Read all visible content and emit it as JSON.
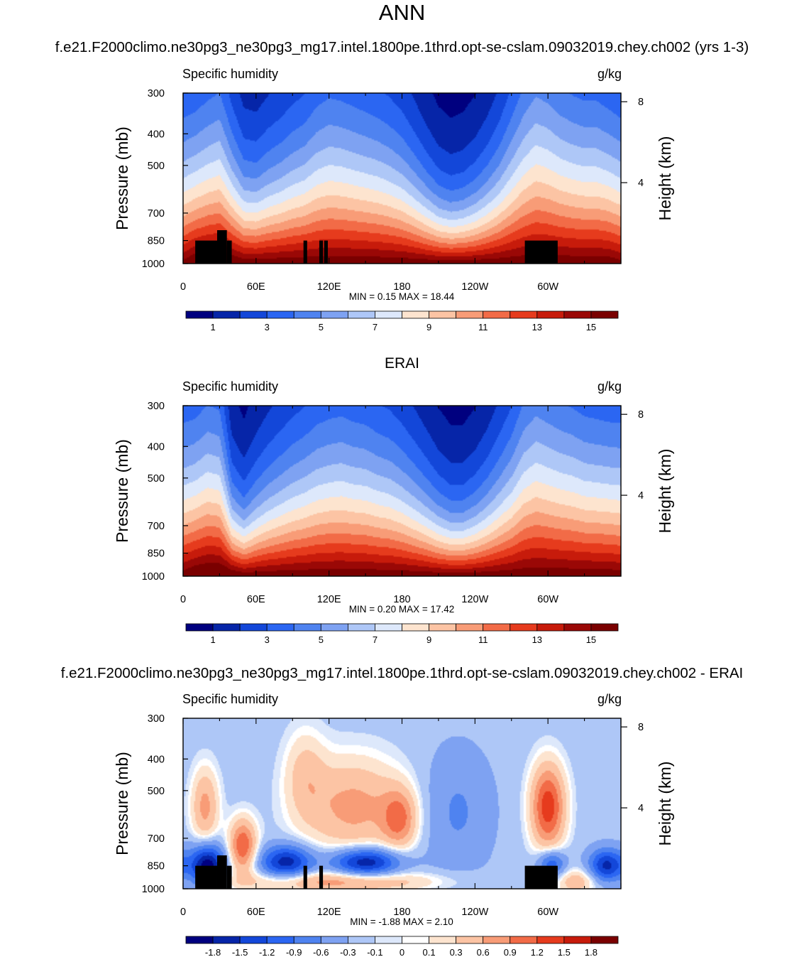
{
  "figure": {
    "title": "ANN",
    "case_title": "f.e21.F2000climo.ne30pg3_ne30pg3_mg17.intel.1800pe.1thrd.opt-se-cslam.09032019.chey.ch002 (yrs 1-3)",
    "ref_title": "ERAI",
    "diff_title": "f.e21.F2000climo.ne30pg3_ne30pg3_mg17.intel.1800pe.1thrd.opt-se-cslam.09032019.chey.ch002 - ERAI"
  },
  "colors": {
    "abs_palette": [
      "#00007f",
      "#0625a8",
      "#1347d9",
      "#2b66f2",
      "#4f83f0",
      "#7ea2f2",
      "#aec7f7",
      "#dde8fb",
      "#fde4cf",
      "#fcc4a4",
      "#f89c77",
      "#f26b47",
      "#e63b1d",
      "#c71b0b",
      "#9a0806",
      "#7a0000"
    ],
    "diff_palette": [
      "#00007f",
      "#0625a8",
      "#1347d9",
      "#2b66f2",
      "#4f83f0",
      "#7ea2f2",
      "#aec7f7",
      "#dde8fb",
      "#ffffff",
      "#fde4cf",
      "#fcc4a4",
      "#f89c77",
      "#f26b47",
      "#e63b1d",
      "#c71b0b",
      "#7a0000"
    ],
    "topography": "#000000"
  },
  "chart_data": [
    {
      "type": "heatmap",
      "panel": "model",
      "left_label": "Specific humidity",
      "right_label": "g/kg",
      "ylabel": "Pressure (mb)",
      "ylabel_right": "Height (km)",
      "x_ticks": [
        "0",
        "60E",
        "120E",
        "180",
        "120W",
        "60W"
      ],
      "x_tick_values": [
        0,
        60,
        120,
        180,
        240,
        300
      ],
      "xlim": [
        0,
        360
      ],
      "y_ticks": [
        "300",
        "400",
        "500",
        "700",
        "850",
        "1000"
      ],
      "y_tick_values": [
        300,
        400,
        500,
        700,
        850,
        1000
      ],
      "ylim": [
        1000,
        300
      ],
      "y_scale": "log pressure",
      "y_right_ticks": [
        "8",
        "4"
      ],
      "y_right_tick_values": [
        8,
        4
      ],
      "stats": "MIN =   0.15  MAX =  18.44",
      "min": 0.15,
      "max": 18.44,
      "colorbar_labels": [
        "1",
        "3",
        "5",
        "7",
        "9",
        "11",
        "13",
        "15"
      ],
      "levels": [
        1,
        2,
        3,
        4,
        5,
        6,
        7,
        8,
        9,
        10,
        11,
        12,
        13,
        14,
        15
      ],
      "field": {
        "lon": [
          0,
          10,
          20,
          30,
          40,
          50,
          60,
          70,
          80,
          90,
          100,
          110,
          120,
          130,
          140,
          150,
          160,
          170,
          180,
          190,
          200,
          210,
          220,
          230,
          240,
          250,
          260,
          270,
          280,
          290,
          300,
          310,
          320,
          330,
          340,
          350,
          360
        ],
        "surface_q": [
          15.5,
          16.5,
          16.8,
          16.8,
          16.5,
          16,
          16,
          16,
          16,
          16,
          16,
          16,
          16,
          16,
          16,
          16,
          16,
          16,
          16,
          16,
          16,
          16,
          16,
          16,
          16,
          16,
          16,
          16,
          16,
          16,
          16,
          16,
          16,
          16,
          16,
          16,
          15.5
        ],
        "moist_height_km": [
          5.3,
          5.3,
          5.6,
          5.9,
          4.6,
          3.7,
          3.6,
          4,
          4.3,
          4.7,
          5,
          5.6,
          5.9,
          5.8,
          5.6,
          5.4,
          5.2,
          4.9,
          4.5,
          3.9,
          3.3,
          2.8,
          2.6,
          2.7,
          3,
          3.5,
          4.2,
          5.2,
          6.3,
          7.1,
          6.8,
          6.3,
          6,
          5.8,
          5.8,
          5.5,
          5.3
        ]
      },
      "topography": [
        [
          10,
          850,
          1000
        ],
        [
          28,
          790,
          1000
        ],
        [
          36,
          850,
          1000
        ],
        [
          40,
          1000,
          1000
        ],
        [
          99,
          850,
          1000
        ],
        [
          102,
          1000,
          1000
        ],
        [
          112,
          850,
          1000
        ],
        [
          115,
          1000,
          1000
        ],
        [
          116,
          850,
          1000
        ],
        [
          119,
          1000,
          1000
        ],
        [
          281,
          850,
          1000
        ],
        [
          308,
          1000,
          1000
        ]
      ]
    },
    {
      "type": "heatmap",
      "panel": "reference",
      "left_label": "Specific humidity",
      "right_label": "g/kg",
      "ylabel": "Pressure (mb)",
      "ylabel_right": "Height (km)",
      "x_ticks": [
        "0",
        "60E",
        "120E",
        "180",
        "120W",
        "60W"
      ],
      "x_tick_values": [
        0,
        60,
        120,
        180,
        240,
        300
      ],
      "xlim": [
        0,
        360
      ],
      "y_ticks": [
        "300",
        "400",
        "500",
        "700",
        "850",
        "1000"
      ],
      "y_tick_values": [
        300,
        400,
        500,
        700,
        850,
        1000
      ],
      "ylim": [
        1000,
        300
      ],
      "y_scale": "log pressure",
      "y_right_ticks": [
        "8",
        "4"
      ],
      "y_right_tick_values": [
        8,
        4
      ],
      "stats": "MIN =   0.20  MAX =  17.42",
      "min": 0.2,
      "max": 17.42,
      "colorbar_labels": [
        "1",
        "3",
        "5",
        "7",
        "9",
        "11",
        "13",
        "15"
      ],
      "levels": [
        1,
        2,
        3,
        4,
        5,
        6,
        7,
        8,
        9,
        10,
        11,
        12,
        13,
        14,
        15
      ],
      "field": {
        "lon": [
          0,
          10,
          20,
          30,
          40,
          50,
          60,
          70,
          80,
          90,
          100,
          110,
          120,
          130,
          140,
          150,
          160,
          170,
          180,
          190,
          200,
          210,
          220,
          230,
          240,
          250,
          260,
          270,
          280,
          290,
          300,
          310,
          320,
          330,
          340,
          350,
          360
        ],
        "surface_q": [
          15.8,
          16.5,
          16.8,
          16.8,
          16.5,
          16,
          16,
          16,
          16,
          16,
          16,
          16,
          16,
          16,
          16,
          16,
          16,
          16,
          16,
          16,
          16,
          16,
          16,
          16,
          16,
          16,
          16,
          16,
          16,
          16,
          16,
          16,
          16,
          16,
          16,
          16,
          15.8
        ],
        "moist_height_km": [
          5.5,
          5.5,
          5.9,
          5.7,
          3.3,
          2.8,
          3.4,
          3.9,
          4.3,
          4.7,
          5,
          5.4,
          5.6,
          5.7,
          5.5,
          5.4,
          5.1,
          4.9,
          4.5,
          4,
          3.5,
          3,
          2.7,
          2.7,
          3,
          3.5,
          4.2,
          5,
          6.2,
          6.8,
          6.5,
          6.2,
          6,
          5.7,
          5.6,
          5.5,
          5.5
        ]
      },
      "topography": []
    },
    {
      "type": "heatmap",
      "panel": "difference",
      "left_label": "Specific humidity",
      "right_label": "g/kg",
      "ylabel": "Pressure (mb)",
      "ylabel_right": "Height (km)",
      "x_ticks": [
        "0",
        "60E",
        "120E",
        "180",
        "120W",
        "60W"
      ],
      "x_tick_values": [
        0,
        60,
        120,
        180,
        240,
        300
      ],
      "xlim": [
        0,
        360
      ],
      "y_ticks": [
        "300",
        "400",
        "500",
        "700",
        "850",
        "1000"
      ],
      "y_tick_values": [
        300,
        400,
        500,
        700,
        850,
        1000
      ],
      "ylim": [
        1000,
        300
      ],
      "y_scale": "log pressure",
      "y_right_ticks": [
        "8",
        "4"
      ],
      "y_right_tick_values": [
        8,
        4
      ],
      "stats": "MIN =  -1.88  MAX =   2.10",
      "min": -1.88,
      "max": 2.1,
      "colorbar_labels": [
        "-1.8",
        "-1.5",
        "-1.2",
        "-0.9",
        "-0.6",
        "-0.3",
        "-0.1",
        "0",
        "0.1",
        "0.3",
        "0.6",
        "0.9",
        "1.2",
        "1.5",
        "1.8"
      ],
      "levels": [
        -1.8,
        -1.5,
        -1.2,
        -0.9,
        -0.6,
        -0.3,
        -0.1,
        0,
        0.1,
        0.3,
        0.6,
        0.9,
        1.2,
        1.5,
        1.8
      ],
      "field": {
        "background": -0.2,
        "features": [
          {
            "lon": 20,
            "p": 850,
            "amp": -1.9,
            "wlon": 10,
            "wp": 90
          },
          {
            "lon": 18,
            "p": 560,
            "amp": 0.9,
            "wlon": 8,
            "wp": 110
          },
          {
            "lon": 49,
            "p": 740,
            "amp": 1.4,
            "wlon": 8,
            "wp": 100
          },
          {
            "lon": 85,
            "p": 830,
            "amp": -1.5,
            "wlon": 15,
            "wp": 70
          },
          {
            "lon": 150,
            "p": 830,
            "amp": -1.7,
            "wlon": 20,
            "wp": 60
          },
          {
            "lon": 140,
            "p": 560,
            "amp": 0.9,
            "wlon": 30,
            "wp": 140
          },
          {
            "lon": 178,
            "p": 610,
            "amp": 1.0,
            "wlon": 10,
            "wp": 90
          },
          {
            "lon": 125,
            "p": 950,
            "amp": 0.9,
            "wlon": 60,
            "wp": 50
          },
          {
            "lon": 300,
            "p": 560,
            "amp": 1.6,
            "wlon": 10,
            "wp": 120
          },
          {
            "lon": 303,
            "p": 840,
            "amp": -1.1,
            "wlon": 8,
            "wp": 60
          },
          {
            "lon": 348,
            "p": 850,
            "amp": -1.4,
            "wlon": 10,
            "wp": 70
          },
          {
            "lon": 323,
            "p": 950,
            "amp": 0.7,
            "wlon": 12,
            "wp": 60
          },
          {
            "lon": 225,
            "p": 580,
            "amp": -0.45,
            "wlon": 20,
            "wp": 180
          },
          {
            "lon": 100,
            "p": 440,
            "amp": 0.5,
            "wlon": 12,
            "wp": 100
          }
        ]
      },
      "topography": [
        [
          10,
          850,
          1000
        ],
        [
          28,
          790,
          1000
        ],
        [
          36,
          850,
          1000
        ],
        [
          40,
          1000,
          1000
        ],
        [
          99,
          850,
          1000
        ],
        [
          102,
          1000,
          1000
        ],
        [
          112,
          850,
          1000
        ],
        [
          115,
          1000,
          1000
        ],
        [
          281,
          850,
          1000
        ],
        [
          308,
          1000,
          1000
        ]
      ]
    }
  ]
}
